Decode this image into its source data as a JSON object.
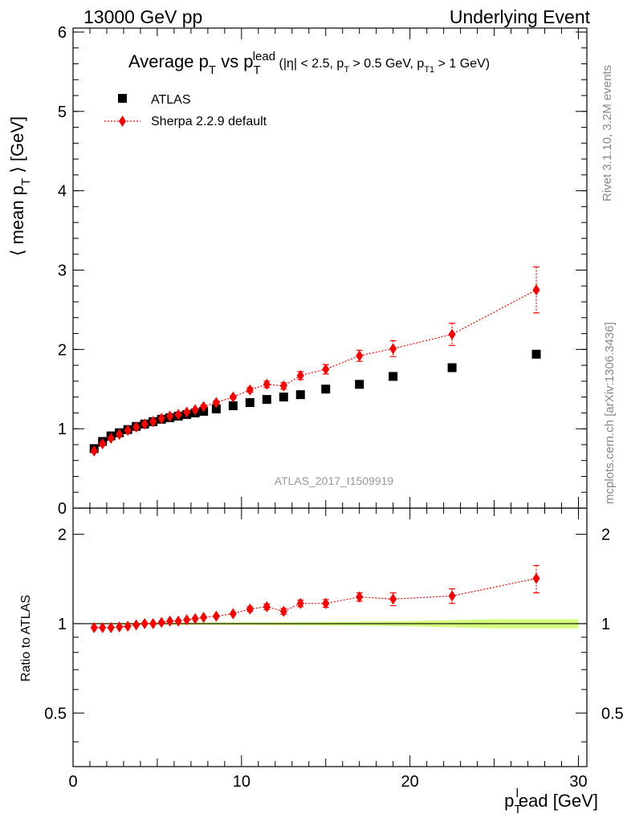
{
  "header": {
    "left": "13000 GeV pp",
    "right": "Underlying Event"
  },
  "side_labels": {
    "rivet": "Rivet 3.1.10,  3.2M events",
    "mcplots": "mcplots.cern.ch [arXiv:1306.3436]"
  },
  "chart_data": [
    {
      "type": "scatter",
      "title": "Average p_T vs p_T^lead (|η| < 2.5, p_T > 0.5 GeV, p_T1 > 1 GeV)",
      "title_parts": {
        "main": "Average p",
        "sub1": "T",
        "vs": " vs p",
        "sub2": "T",
        "sup2": "lead",
        "cuts_a": " (|η| < 2.5, p",
        "cuts_sub_a": "T",
        "cuts_b": " > 0.5 GeV, p",
        "cuts_sub_b": "T1",
        "cuts_c": " > 1 GeV)"
      },
      "ylabel": "⟨ mean p_T ⟩ [GeV]",
      "ylabel_parts": {
        "a": "⟨ mean p",
        "sub": "T",
        "b": " ⟩ [GeV]"
      },
      "xlabel": "p_T^lead [GeV]",
      "xlabel_parts": {
        "a": "p",
        "sub": "T",
        "sup": "l",
        "b": "ead [GeV]"
      },
      "xlim": [
        0,
        30.5
      ],
      "ylim": [
        0,
        6.05
      ],
      "yticks": [
        0,
        1,
        2,
        3,
        4,
        5,
        6
      ],
      "xticks": [
        0,
        10,
        20,
        30
      ],
      "watermark": "ATLAS_2017_I1509919",
      "legend_position": "top-left",
      "series": [
        {
          "name": "ATLAS",
          "marker": "square",
          "color": "#000000",
          "x": [
            1.25,
            1.75,
            2.25,
            2.75,
            3.25,
            3.75,
            4.25,
            4.75,
            5.25,
            5.75,
            6.25,
            6.75,
            7.25,
            7.75,
            8.5,
            9.5,
            10.5,
            11.5,
            12.5,
            13.5,
            15.0,
            17.0,
            19.0,
            22.5,
            27.5
          ],
          "y": [
            0.75,
            0.84,
            0.91,
            0.95,
            0.99,
            1.03,
            1.06,
            1.09,
            1.12,
            1.14,
            1.16,
            1.18,
            1.2,
            1.22,
            1.25,
            1.29,
            1.33,
            1.37,
            1.4,
            1.43,
            1.5,
            1.56,
            1.66,
            1.77,
            1.94
          ]
        },
        {
          "name": "Sherpa 2.2.9 default",
          "marker": "diamond",
          "line": "dotted",
          "color": "#ff0000",
          "x": [
            1.25,
            1.75,
            2.25,
            2.75,
            3.25,
            3.75,
            4.25,
            4.75,
            5.25,
            5.75,
            6.25,
            6.75,
            7.25,
            7.75,
            8.5,
            9.5,
            10.5,
            11.5,
            12.5,
            13.5,
            15.0,
            17.0,
            19.0,
            22.5,
            27.5
          ],
          "y": [
            0.72,
            0.81,
            0.88,
            0.93,
            0.98,
            1.02,
            1.06,
            1.09,
            1.13,
            1.16,
            1.18,
            1.21,
            1.24,
            1.28,
            1.33,
            1.4,
            1.49,
            1.56,
            1.54,
            1.67,
            1.75,
            1.92,
            2.01,
            2.19,
            2.75
          ],
          "yerr": [
            0.01,
            0.01,
            0.01,
            0.01,
            0.01,
            0.01,
            0.01,
            0.01,
            0.01,
            0.01,
            0.01,
            0.01,
            0.01,
            0.02,
            0.02,
            0.02,
            0.03,
            0.04,
            0.04,
            0.05,
            0.06,
            0.07,
            0.1,
            0.14,
            0.29
          ]
        }
      ]
    },
    {
      "type": "scatter",
      "ylabel": "Ratio to ATLAS",
      "xlim": [
        0,
        30.5
      ],
      "ylim": [
        0.33,
        2.45
      ],
      "ytick_labels": [
        "0.5",
        "1",
        "2"
      ],
      "reference_band": {
        "x": [
          1.0,
          2.0,
          3.0,
          5.0,
          8.0,
          12.0,
          16.0,
          20.0,
          25.0,
          30.0
        ],
        "half_width": [
          0.005,
          0.005,
          0.006,
          0.008,
          0.01,
          0.012,
          0.015,
          0.02,
          0.035,
          0.035
        ],
        "color": "#ccff66"
      },
      "series": [
        {
          "name": "Sherpa 2.2.9 default",
          "marker": "diamond",
          "line": "dotted",
          "color": "#ff0000",
          "x": [
            1.25,
            1.75,
            2.25,
            2.75,
            3.25,
            3.75,
            4.25,
            4.75,
            5.25,
            5.75,
            6.25,
            6.75,
            7.25,
            7.75,
            8.5,
            9.5,
            10.5,
            11.5,
            12.5,
            13.5,
            15.0,
            17.0,
            19.0,
            22.5,
            27.5
          ],
          "y": [
            0.97,
            0.97,
            0.97,
            0.975,
            0.98,
            0.99,
            1.0,
            1.0,
            1.01,
            1.02,
            1.02,
            1.03,
            1.04,
            1.05,
            1.06,
            1.08,
            1.12,
            1.14,
            1.1,
            1.17,
            1.17,
            1.23,
            1.21,
            1.24,
            1.42
          ],
          "yerr": [
            0.005,
            0.005,
            0.005,
            0.005,
            0.005,
            0.005,
            0.005,
            0.006,
            0.006,
            0.006,
            0.007,
            0.008,
            0.009,
            0.01,
            0.012,
            0.014,
            0.02,
            0.025,
            0.025,
            0.03,
            0.035,
            0.04,
            0.06,
            0.07,
            0.15
          ]
        }
      ]
    }
  ]
}
